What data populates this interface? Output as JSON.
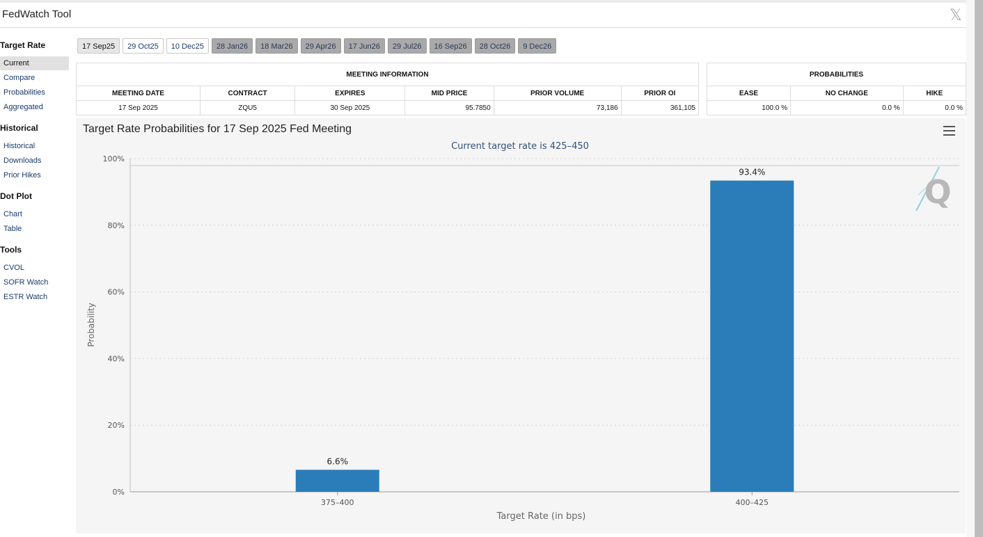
{
  "app": {
    "title": "FedWatch Tool",
    "close_glyph": "𝕏"
  },
  "sidebar": {
    "sections": [
      {
        "heading": "Target Rate",
        "items": [
          "Current",
          "Compare",
          "Probabilities",
          "Aggregated"
        ]
      },
      {
        "heading": "Historical",
        "items": [
          "Historical",
          "Downloads",
          "Prior Hikes"
        ]
      },
      {
        "heading": "Dot Plot",
        "items": [
          "Chart",
          "Table"
        ]
      },
      {
        "heading": "Tools",
        "items": [
          "CVOL",
          "SOFR Watch",
          "ESTR Watch"
        ]
      }
    ]
  },
  "tabs": [
    "17 Sep25",
    "29 Oct25",
    "10 Dec25",
    "28 Jan26",
    "18 Mar26",
    "29 Apr26",
    "17 Jun26",
    "29 Jul26",
    "16 Sep26",
    "28 Oct26",
    "9 Dec26"
  ],
  "meeting_info": {
    "title": "MEETING INFORMATION",
    "headers": [
      "MEETING DATE",
      "CONTRACT",
      "EXPIRES",
      "MID PRICE",
      "PRIOR VOLUME",
      "PRIOR OI"
    ],
    "values": [
      "17 Sep 2025",
      "ZQU5",
      "30 Sep 2025",
      "95.7850",
      "73,186",
      "361,105"
    ]
  },
  "probabilities": {
    "title": "PROBABILITIES",
    "headers": [
      "EASE",
      "NO CHANGE",
      "HIKE"
    ],
    "values": [
      "100.0 %",
      "0.0 %",
      "0.0 %"
    ]
  },
  "chart_data": {
    "type": "bar",
    "title": "Target Rate Probabilities for 17 Sep 2025 Fed Meeting",
    "subtitle": "Current target rate is 425–450",
    "xlabel": "Target Rate (in bps)",
    "ylabel": "Probability",
    "categories": [
      "375–400",
      "400–425"
    ],
    "values": [
      6.6,
      93.4
    ],
    "data_labels": [
      "6.6%",
      "93.4%"
    ],
    "ylim": [
      0,
      100
    ],
    "yticks": [
      "0%",
      "20%",
      "40%",
      "60%",
      "80%",
      "100%"
    ],
    "grid": true,
    "bar_color": "#2a7db8",
    "watermark": "Q"
  }
}
